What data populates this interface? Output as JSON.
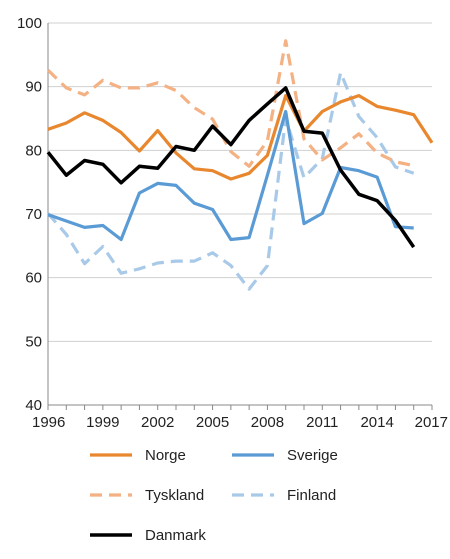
{
  "chart_data": {
    "type": "line",
    "title": "",
    "xlabel": "",
    "ylabel": "",
    "xlim": [
      1996,
      2017
    ],
    "ylim": [
      40,
      100
    ],
    "x_ticks": [
      "1996",
      "1999",
      "2002",
      "2005",
      "2008",
      "2011",
      "2014",
      "2017"
    ],
    "y_ticks": [
      "40",
      "50",
      "60",
      "70",
      "80",
      "90",
      "100"
    ],
    "grid": "horizontal",
    "legend_position": "bottom",
    "series": [
      {
        "name": "Norge",
        "color": "#E8872E",
        "style": "solid",
        "x": [
          1996,
          1997,
          1998,
          1999,
          2000,
          2001,
          2002,
          2003,
          2004,
          2005,
          2006,
          2007,
          2008,
          2009,
          2010,
          2011,
          2012,
          2013,
          2014,
          2015,
          2016,
          2017
        ],
        "values": [
          83.3,
          84.3,
          85.9,
          84.7,
          82.8,
          79.9,
          83.1,
          79.6,
          77.1,
          76.8,
          75.5,
          76.4,
          79.2,
          88.6,
          83.0,
          86.1,
          87.6,
          88.6,
          86.9,
          86.3,
          85.6,
          81.2
        ]
      },
      {
        "name": "Sverige",
        "color": "#5B9BD5",
        "style": "solid",
        "x": [
          1996,
          1997,
          1998,
          1999,
          2000,
          2001,
          2002,
          2003,
          2004,
          2005,
          2006,
          2007,
          2008,
          2009,
          2010,
          2011,
          2012,
          2013,
          2014,
          2015,
          2016
        ],
        "values": [
          69.9,
          68.9,
          67.9,
          68.2,
          66.0,
          73.3,
          74.8,
          74.5,
          71.7,
          70.7,
          66.0,
          66.3,
          76.1,
          86.1,
          68.5,
          70.1,
          77.3,
          76.8,
          75.8,
          68.0,
          67.8
        ]
      },
      {
        "name": "Tyskland",
        "color": "#F4B183",
        "style": "dashed",
        "x": [
          1996,
          1997,
          1998,
          1999,
          2000,
          2001,
          2002,
          2003,
          2004,
          2005,
          2006,
          2007,
          2008,
          2009,
          2010,
          2011,
          2012,
          2013,
          2014,
          2015,
          2016
        ],
        "values": [
          92.6,
          89.8,
          88.7,
          91.0,
          89.8,
          89.8,
          90.6,
          89.4,
          86.7,
          84.9,
          79.8,
          77.5,
          81.5,
          97.2,
          81.8,
          78.5,
          80.4,
          82.6,
          79.6,
          78.2,
          77.6
        ]
      },
      {
        "name": "Finland",
        "color": "#A9C9E8",
        "style": "dashed",
        "x": [
          1996,
          1997,
          1998,
          1999,
          2000,
          2001,
          2002,
          2003,
          2004,
          2005,
          2006,
          2007,
          2008,
          2009,
          2010,
          2011,
          2012,
          2013,
          2014,
          2015,
          2016
        ],
        "values": [
          70.1,
          66.8,
          62.2,
          64.9,
          60.7,
          61.4,
          62.3,
          62.6,
          62.6,
          63.9,
          61.9,
          58.2,
          61.9,
          85.0,
          75.7,
          78.7,
          92.2,
          85.3,
          82.0,
          77.4,
          76.4
        ]
      },
      {
        "name": "Danmark",
        "color": "#000000",
        "style": "solid",
        "x": [
          1996,
          1997,
          1998,
          1999,
          2000,
          2001,
          2002,
          2003,
          2004,
          2005,
          2006,
          2007,
          2008,
          2009,
          2010,
          2011,
          2012,
          2013,
          2014,
          2015,
          2016
        ],
        "values": [
          79.7,
          76.1,
          78.4,
          77.8,
          74.9,
          77.5,
          77.2,
          80.6,
          80.0,
          83.8,
          80.9,
          84.7,
          87.3,
          89.8,
          83.0,
          82.7,
          76.9,
          73.1,
          72.1,
          69.0,
          64.8
        ]
      }
    ]
  }
}
